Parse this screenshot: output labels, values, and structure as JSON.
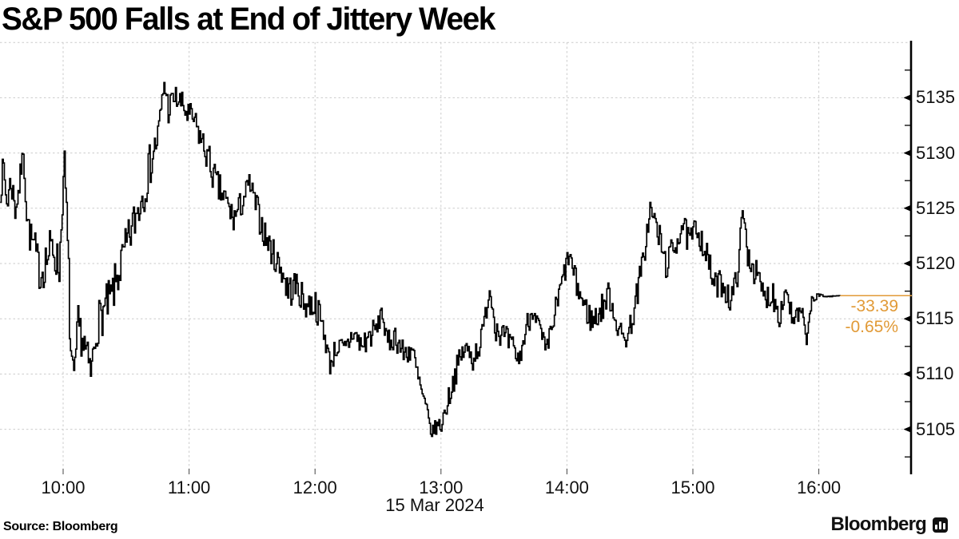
{
  "title": "S&P 500 Falls at End of Jittery Week",
  "source": "Source:  Bloomberg",
  "logo": {
    "wordmark": "Bloomberg"
  },
  "annotation": {
    "net_change": "-33.39",
    "pct_change": "-0.65%",
    "last_price": 5117.09,
    "color": "#E19A37"
  },
  "chart_data": {
    "type": "line",
    "style": "intraday-tick-step",
    "title": "S&P 500 Index intraday price",
    "x_axis": {
      "label": "15 Mar 2024",
      "ticks": [
        "10:00",
        "11:00",
        "12:00",
        "13:00",
        "14:00",
        "15:00",
        "16:00"
      ],
      "tick_hours": [
        10,
        11,
        12,
        13,
        14,
        15,
        16
      ],
      "range_hours": [
        9.5,
        16.75
      ]
    },
    "y_axis": {
      "ticks": [
        "5135",
        "5130",
        "5125",
        "5120",
        "5115",
        "5110",
        "5105"
      ],
      "tick_values": [
        5135,
        5130,
        5125,
        5120,
        5115,
        5110,
        5105
      ],
      "gridline_prices": [
        5140,
        5135,
        5130,
        5125,
        5120,
        5115,
        5110,
        5105
      ],
      "minor_tick_step": 2.5,
      "range": [
        5101,
        5140
      ]
    },
    "grid": true,
    "legend": false,
    "colors": {
      "line": "#000000",
      "grid": "#cbcbcb",
      "axis": "#000000",
      "annotation": "#E19A37"
    },
    "series": [
      {
        "name": "S&P 500 Index",
        "keyframe_format": "[minutes_after_0930, price, tick_jitter_pts]",
        "keyframes": [
          [
            0,
            5127,
            1.5
          ],
          [
            1.5,
            5128.5,
            1.5
          ],
          [
            3,
            5125.5,
            1.5
          ],
          [
            5,
            5127.5,
            1.5
          ],
          [
            7,
            5125,
            1.5
          ],
          [
            9,
            5127,
            1.5
          ],
          [
            10.8,
            5130.2,
            0.5
          ],
          [
            12.5,
            5124.5,
            1.5
          ],
          [
            14,
            5122.5,
            1.5
          ],
          [
            16,
            5121.5,
            1.8
          ],
          [
            19,
            5119,
            1.8
          ],
          [
            22,
            5120.5,
            2.2
          ],
          [
            25,
            5121.5,
            2.2
          ],
          [
            28,
            5119.5,
            1.8
          ],
          [
            30.5,
            5129.5,
            0.8
          ],
          [
            32,
            5121,
            3.5
          ],
          [
            33.5,
            5112,
            1.8
          ],
          [
            35,
            5109.5,
            0.9
          ],
          [
            37,
            5114.5,
            1.8
          ],
          [
            40,
            5112.5,
            2
          ],
          [
            43,
            5110,
            1.4
          ],
          [
            46,
            5114.5,
            2
          ],
          [
            50,
            5116,
            2
          ],
          [
            53,
            5117,
            2
          ],
          [
            56,
            5119,
            2
          ],
          [
            60,
            5121.5,
            2
          ],
          [
            64,
            5124,
            2
          ],
          [
            68,
            5126.5,
            2.2
          ],
          [
            72,
            5129.5,
            2
          ],
          [
            75,
            5131.5,
            1.6
          ],
          [
            78,
            5136.3,
            0.6
          ],
          [
            80,
            5134,
            1.5
          ],
          [
            83,
            5135,
            1.2
          ],
          [
            86,
            5134.5,
            1.2
          ],
          [
            89,
            5133.5,
            1.3
          ],
          [
            92,
            5133,
            1.2
          ],
          [
            95,
            5131.5,
            1.3
          ],
          [
            99,
            5129.5,
            1.5
          ],
          [
            103,
            5127,
            1.6
          ],
          [
            107,
            5125.8,
            1.4
          ],
          [
            111,
            5124,
            1.3
          ],
          [
            115,
            5125.5,
            1.3
          ],
          [
            118.5,
            5127.3,
            0.9
          ],
          [
            122,
            5125,
            1.4
          ],
          [
            126,
            5122.5,
            1.4
          ],
          [
            130,
            5120.8,
            1.4
          ],
          [
            134,
            5119.5,
            1.5
          ],
          [
            137,
            5117.5,
            1.6
          ],
          [
            141,
            5118,
            1.5
          ],
          [
            145,
            5116.3,
            1.3
          ],
          [
            150,
            5116.3,
            1.4
          ],
          [
            154,
            5114,
            1.3
          ],
          [
            157,
            5110.8,
            0.9
          ],
          [
            160,
            5112.5,
            1.2
          ],
          [
            164,
            5112,
            1.3
          ],
          [
            168,
            5113.8,
            1.2
          ],
          [
            172,
            5112.5,
            1.3
          ],
          [
            176,
            5113.5,
            1.3
          ],
          [
            180,
            5114.3,
            1
          ],
          [
            181.5,
            5116,
            0.5
          ],
          [
            184,
            5112.7,
            1.2
          ],
          [
            188,
            5113.5,
            1.2
          ],
          [
            192,
            5111.8,
            1.2
          ],
          [
            196,
            5112.3,
            1.2
          ],
          [
            199,
            5109.5,
            1.2
          ],
          [
            203,
            5106.5,
            1
          ],
          [
            205.5,
            5104.6,
            0.5
          ],
          [
            207,
            5105.2,
            0.7
          ],
          [
            210,
            5105.4,
            0.9
          ],
          [
            213,
            5107.5,
            1
          ],
          [
            217,
            5110.3,
            1.2
          ],
          [
            221,
            5112.3,
            1.2
          ],
          [
            225,
            5111.5,
            1.3
          ],
          [
            229,
            5113,
            1.2
          ],
          [
            232,
            5116.5,
            0.8
          ],
          [
            233,
            5117.6,
            0.4
          ],
          [
            236,
            5114.3,
            1.3
          ],
          [
            240,
            5113.3,
            1.3
          ],
          [
            244,
            5112.3,
            1.2
          ],
          [
            247,
            5111.2,
            0.8
          ],
          [
            251,
            5114.5,
            1.2
          ],
          [
            254,
            5116,
            0.8
          ],
          [
            257,
            5113.8,
            1.2
          ],
          [
            260,
            5111.8,
            1
          ],
          [
            263,
            5114.5,
            1.3
          ],
          [
            266,
            5117,
            1.3
          ],
          [
            269,
            5119.5,
            1.2
          ],
          [
            271,
            5120.8,
            0.8
          ],
          [
            274,
            5118.3,
            1.3
          ],
          [
            278,
            5116.2,
            1.3
          ],
          [
            282,
            5114.7,
            1.3
          ],
          [
            286,
            5115.8,
            1.3
          ],
          [
            290,
            5117.3,
            1.3
          ],
          [
            293,
            5115,
            1.2
          ],
          [
            296,
            5113.3,
            1.1
          ],
          [
            299,
            5113.5,
            1.2
          ],
          [
            302,
            5116,
            1.3
          ],
          [
            306,
            5120,
            1.4
          ],
          [
            309.5,
            5125,
            0.9
          ],
          [
            313,
            5123,
            1.4
          ],
          [
            317,
            5119.8,
            1.3
          ],
          [
            321,
            5121.5,
            1.4
          ],
          [
            325,
            5123.6,
            1.1
          ],
          [
            328,
            5121.8,
            1.4
          ],
          [
            332,
            5123.3,
            1.3
          ],
          [
            336,
            5121,
            1.4
          ],
          [
            340,
            5118,
            1.2
          ],
          [
            344,
            5118.3,
            1.3
          ],
          [
            348,
            5116.5,
            1.3
          ],
          [
            351,
            5119,
            1.1
          ],
          [
            353.5,
            5124.8,
            0.6
          ],
          [
            356,
            5121,
            1.4
          ],
          [
            360,
            5119,
            1.3
          ],
          [
            364,
            5116.9,
            1.1
          ],
          [
            368,
            5117.3,
            1.4
          ],
          [
            371,
            5115.3,
            1.2
          ],
          [
            374.5,
            5117.8,
            1
          ],
          [
            377.5,
            5114.5,
            1.1
          ],
          [
            381,
            5115.5,
            1.2
          ],
          [
            384.5,
            5113.2,
            0.8
          ],
          [
            386.5,
            5116.9,
            0.5
          ],
          [
            389,
            5116.8,
            0.5
          ],
          [
            391,
            5117.2,
            0.15
          ],
          [
            393,
            5117,
            0.05
          ],
          [
            400,
            5117.09,
            0.02
          ]
        ]
      }
    ]
  }
}
